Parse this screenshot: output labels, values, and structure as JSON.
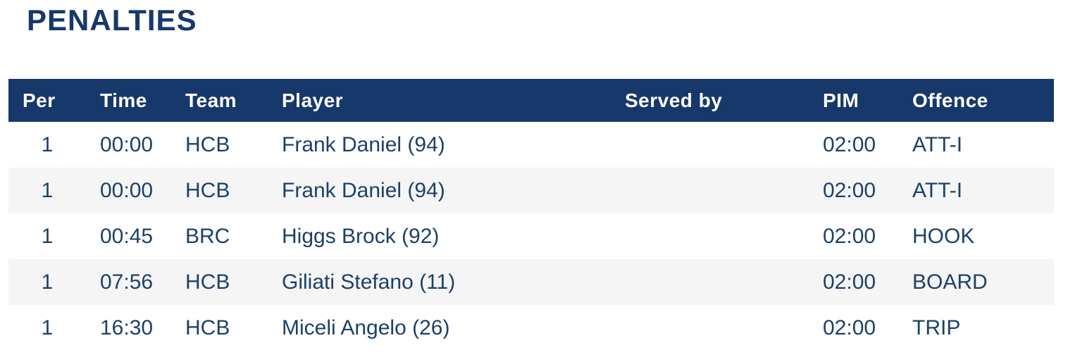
{
  "title": "PENALTIES",
  "colors": {
    "navy": "#17386a",
    "header_text": "#ffffff",
    "row_text": "#1d4068",
    "stripe": "#f5f5f6",
    "background": "#ffffff"
  },
  "table": {
    "columns": [
      {
        "key": "per",
        "label": "Per"
      },
      {
        "key": "time",
        "label": "Time"
      },
      {
        "key": "team",
        "label": "Team"
      },
      {
        "key": "player",
        "label": "Player"
      },
      {
        "key": "served_by",
        "label": "Served by"
      },
      {
        "key": "pim",
        "label": "PIM"
      },
      {
        "key": "offence",
        "label": "Offence"
      }
    ],
    "rows": [
      {
        "per": "1",
        "time": "00:00",
        "team": "HCB",
        "player": "Frank Daniel (94)",
        "served_by": "",
        "pim": "02:00",
        "offence": "ATT-I"
      },
      {
        "per": "1",
        "time": "00:00",
        "team": "HCB",
        "player": "Frank Daniel (94)",
        "served_by": "",
        "pim": "02:00",
        "offence": "ATT-I"
      },
      {
        "per": "1",
        "time": "00:45",
        "team": "BRC",
        "player": "Higgs Brock (92)",
        "served_by": "",
        "pim": "02:00",
        "offence": "HOOK"
      },
      {
        "per": "1",
        "time": "07:56",
        "team": "HCB",
        "player": "Giliati Stefano (11)",
        "served_by": "",
        "pim": "02:00",
        "offence": "BOARD"
      },
      {
        "per": "1",
        "time": "16:30",
        "team": "HCB",
        "player": "Miceli Angelo (26)",
        "served_by": "",
        "pim": "02:00",
        "offence": "TRIP"
      }
    ]
  }
}
